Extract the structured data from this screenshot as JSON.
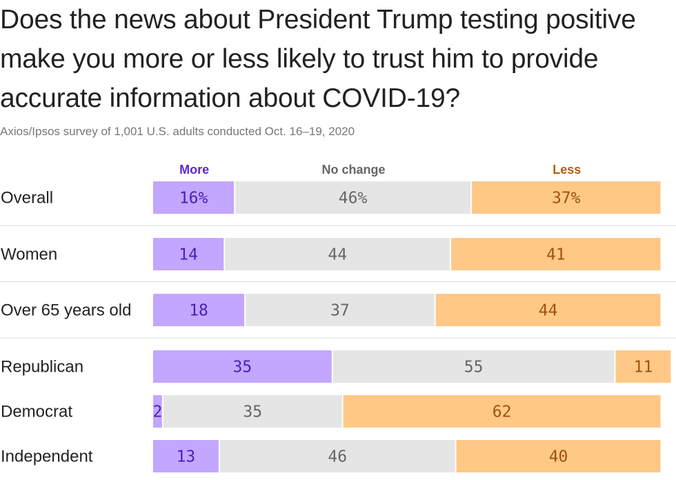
{
  "chart_data": {
    "type": "bar",
    "orientation": "horizontal",
    "stacked": true,
    "title": "Does the news about President Trump testing positive make you more or less likely to trust him to provide accurate information about COVID-19?",
    "subtitle": "Axios/Ipsos survey of 1,001 U.S. adults conducted Oct. 16–19, 2020",
    "categories": [
      "Overall",
      "Women",
      "Over 65 years old",
      "Republican",
      "Democrat",
      "Independent"
    ],
    "series": [
      {
        "name": "More",
        "values": [
          16,
          14,
          18,
          35,
          2,
          13
        ],
        "labels": [
          "16%",
          "14",
          "18",
          "35",
          "2",
          "13"
        ]
      },
      {
        "name": "No change",
        "values": [
          46,
          44,
          37,
          55,
          35,
          46
        ],
        "labels": [
          "46%",
          "44",
          "37",
          "55",
          "35",
          "46"
        ]
      },
      {
        "name": "Less",
        "values": [
          37,
          41,
          44,
          11,
          62,
          40
        ],
        "labels": [
          "37%",
          "41",
          "44",
          "11",
          "62",
          "40"
        ]
      }
    ],
    "xlim": [
      0,
      100
    ],
    "legend_position": "top",
    "colors": {
      "More": "#c3a6ff",
      "No change": "#e5e5e5",
      "Less": "#ffc887"
    },
    "label_colors": {
      "More": "#4a1fb8",
      "No change": "#666666",
      "Less": "#a0520e"
    },
    "legend_colors": {
      "More": "#5a27d6",
      "No change": "#666666",
      "Less": "#b55d0c"
    },
    "separator_color": "#dddddd"
  }
}
